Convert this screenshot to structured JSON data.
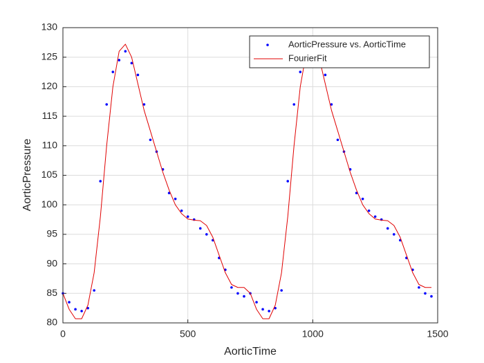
{
  "chart_data": {
    "type": "line",
    "xlabel": "AorticTime",
    "ylabel": "AorticPressure",
    "xlim": [
      0,
      1500
    ],
    "ylim": [
      80,
      130
    ],
    "xticks": [
      0,
      500,
      1000,
      1500
    ],
    "yticks": [
      80,
      85,
      90,
      95,
      100,
      105,
      110,
      115,
      120,
      125,
      130
    ],
    "grid": true,
    "legend": "northeast",
    "series": [
      {
        "name": "AorticPressure vs. AorticTime",
        "color": "#0000ff",
        "style": "markers",
        "x": [
          0,
          25,
          50,
          75,
          100,
          125,
          150,
          175,
          200,
          225,
          250,
          275,
          300,
          325,
          350,
          375,
          400,
          425,
          450,
          475,
          500,
          525,
          550,
          575,
          600,
          625,
          650,
          675,
          700,
          725,
          750,
          775,
          800,
          825,
          850,
          875,
          900,
          925,
          950,
          975,
          1000,
          1025,
          1050,
          1075,
          1100,
          1125,
          1150,
          1175,
          1200,
          1225,
          1250,
          1275,
          1300,
          1325,
          1350,
          1375,
          1400,
          1425,
          1450,
          1475
        ],
        "values": [
          85,
          83.5,
          82.3,
          82,
          82.5,
          85.5,
          104,
          117,
          122.5,
          124.5,
          126,
          124,
          122,
          117,
          111,
          109,
          106,
          102,
          101,
          99,
          98,
          97.5,
          96,
          95,
          94,
          91,
          89,
          86,
          85,
          84.5,
          85,
          83.5,
          82.3,
          82,
          82.5,
          85.5,
          104,
          117,
          122.5,
          124.5,
          126,
          124,
          122,
          117,
          111,
          109,
          106,
          102,
          101,
          99,
          98,
          97.5,
          96,
          95,
          94,
          91,
          89,
          86,
          85,
          84.5
        ]
      },
      {
        "name": "FourierFit",
        "color": "#e00000",
        "style": "line",
        "x": [
          0,
          25,
          50,
          75,
          100,
          125,
          150,
          175,
          200,
          225,
          250,
          275,
          300,
          325,
          350,
          375,
          400,
          425,
          450,
          475,
          500,
          525,
          550,
          575,
          600,
          625,
          650,
          675,
          700,
          725,
          750,
          775,
          800,
          825,
          850,
          875,
          900,
          925,
          950,
          975,
          1000,
          1025,
          1050,
          1075,
          1100,
          1125,
          1150,
          1175,
          1200,
          1225,
          1250,
          1275,
          1300,
          1325,
          1350,
          1375,
          1400,
          1425,
          1450,
          1475
        ],
        "values": [
          85,
          82.3,
          80.7,
          80.7,
          83,
          88.5,
          98,
          110,
          120,
          126,
          127.2,
          125,
          120.5,
          116,
          112.5,
          109,
          105.5,
          102.5,
          100,
          98.5,
          97.6,
          97.4,
          97.3,
          96.5,
          94.5,
          91.5,
          88.5,
          86.5,
          86,
          86,
          85,
          82.3,
          80.7,
          80.7,
          83,
          88.5,
          98,
          110,
          120,
          126,
          127.2,
          125,
          120.5,
          116,
          112.5,
          109,
          105.5,
          102.5,
          100,
          98.5,
          97.6,
          97.4,
          97.3,
          96.5,
          94.5,
          91.5,
          88.5,
          86.5,
          86,
          86
        ]
      }
    ]
  }
}
